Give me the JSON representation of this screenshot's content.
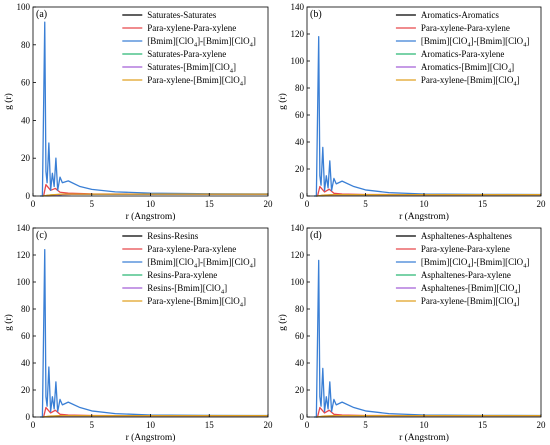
{
  "chart_data": [
    {
      "type": "line",
      "panel_label": "(a)",
      "xlabel": "r (Angstrom)",
      "ylabel": "g (r)",
      "xlim": [
        0,
        20
      ],
      "ylim": [
        0,
        100
      ],
      "xticks": [
        0,
        5,
        10,
        15,
        20
      ],
      "yticks": [
        0,
        20,
        40,
        60,
        80,
        100
      ],
      "legend_position": "top-right",
      "series": [
        {
          "name": "Saturates-Saturates",
          "color": "#000000",
          "x": [
            0.8,
            1.5,
            2.5,
            5,
            10,
            20
          ],
          "y": [
            0,
            0.3,
            0.8,
            1.0,
            1.0,
            1.0
          ]
        },
        {
          "name": "Para-xylene-Para-xylene",
          "color": "#e8474b",
          "x": [
            0.9,
            1.1,
            1.5,
            1.9,
            2.3,
            3,
            5,
            10,
            20
          ],
          "y": [
            0,
            6,
            3,
            4,
            2,
            1.5,
            1.1,
            1.0,
            1.0
          ]
        },
        {
          "name": "[Bmim][ClO4]-[Bmim][ClO4]",
          "color": "#3a7fd5",
          "x": [
            0.6,
            0.8,
            1.0,
            1.1,
            1.2,
            1.35,
            1.5,
            1.65,
            1.8,
            1.95,
            2.1,
            2.3,
            2.5,
            3,
            4,
            5,
            7,
            10,
            15,
            20
          ],
          "y": [
            0,
            0,
            92,
            13,
            7,
            28,
            3,
            12,
            5,
            20,
            3,
            10,
            7,
            8,
            5,
            3.5,
            2.2,
            1.5,
            1.2,
            1.1
          ]
        },
        {
          "name": "Saturates-Para-xylene",
          "color": "#2bb673",
          "x": [
            0.8,
            1.5,
            2.5,
            5,
            10,
            20
          ],
          "y": [
            0,
            0.5,
            0.9,
            1.0,
            1.0,
            1.0
          ]
        },
        {
          "name": "Saturates-[Bmim][ClO4]",
          "color": "#a35fd6",
          "x": [
            0.8,
            1.5,
            2.5,
            5,
            10,
            20
          ],
          "y": [
            0,
            0.4,
            0.8,
            1.0,
            1.0,
            1.0
          ]
        },
        {
          "name": "Para-xylene-[Bmim][ClO4]",
          "color": "#e0a020",
          "x": [
            0.8,
            1.5,
            2.5,
            5,
            10,
            20
          ],
          "y": [
            0,
            0.6,
            1.0,
            1.0,
            1.0,
            1.0
          ]
        }
      ]
    },
    {
      "type": "line",
      "panel_label": "(b)",
      "xlabel": "r (Angstrom)",
      "ylabel": "g (r)",
      "xlim": [
        0,
        20
      ],
      "ylim": [
        0,
        140
      ],
      "xticks": [
        0,
        5,
        10,
        15,
        20
      ],
      "yticks": [
        0,
        20,
        40,
        60,
        80,
        100,
        120,
        140
      ],
      "legend_position": "top-right",
      "series": [
        {
          "name": "Aromatics-Aromatics",
          "color": "#000000",
          "x": [
            0.8,
            1.5,
            2.5,
            5,
            10,
            20
          ],
          "y": [
            0,
            0.4,
            0.9,
            1.0,
            1.0,
            1.0
          ]
        },
        {
          "name": "Para-xylene-Para-xylene",
          "color": "#e8474b",
          "x": [
            0.9,
            1.1,
            1.5,
            1.9,
            2.3,
            3,
            5,
            10,
            20
          ],
          "y": [
            0,
            7,
            3,
            5,
            2,
            1.5,
            1.1,
            1.0,
            1.0
          ]
        },
        {
          "name": "[Bmim][ClO4]-[Bmim][ClO4]",
          "color": "#3a7fd5",
          "x": [
            0.6,
            0.8,
            1.0,
            1.1,
            1.2,
            1.35,
            1.5,
            1.65,
            1.8,
            1.95,
            2.1,
            2.3,
            2.5,
            3,
            4,
            5,
            7,
            10,
            15,
            20
          ],
          "y": [
            0,
            0,
            118,
            15,
            8,
            36,
            4,
            15,
            6,
            26,
            4,
            13,
            9,
            11,
            7,
            4.5,
            2.5,
            1.5,
            1.2,
            1.1
          ]
        },
        {
          "name": "Aromatics-Para-xylene",
          "color": "#2bb673",
          "x": [
            0.8,
            1.5,
            2.5,
            5,
            10,
            20
          ],
          "y": [
            0,
            0.5,
            1.0,
            1.0,
            1.0,
            1.0
          ]
        },
        {
          "name": "Aromatics-[Bmim][ClO4]",
          "color": "#a35fd6",
          "x": [
            0.8,
            1.5,
            2.5,
            5,
            10,
            20
          ],
          "y": [
            0,
            0.5,
            0.9,
            1.0,
            1.0,
            1.0
          ]
        },
        {
          "name": "Para-xylene-[Bmim][ClO4]",
          "color": "#e0a020",
          "x": [
            0.8,
            1.5,
            2.5,
            5,
            10,
            20
          ],
          "y": [
            0,
            0.7,
            1.0,
            1.0,
            1.0,
            1.0
          ]
        }
      ]
    },
    {
      "type": "line",
      "panel_label": "(c)",
      "xlabel": "r (Angstrom)",
      "ylabel": "g (r)",
      "xlim": [
        0,
        20
      ],
      "ylim": [
        0,
        140
      ],
      "xticks": [
        0,
        5,
        10,
        15,
        20
      ],
      "yticks": [
        0,
        20,
        40,
        60,
        80,
        100,
        120,
        140
      ],
      "legend_position": "top-right",
      "series": [
        {
          "name": "Resins-Resins",
          "color": "#000000",
          "x": [
            0.8,
            1.5,
            2.5,
            5,
            10,
            20
          ],
          "y": [
            0,
            0.3,
            0.8,
            1.0,
            1.0,
            1.0
          ]
        },
        {
          "name": "Para-xylene-Para-xylene",
          "color": "#e8474b",
          "x": [
            0.9,
            1.1,
            1.5,
            1.9,
            2.3,
            3,
            5,
            10,
            20
          ],
          "y": [
            0,
            7,
            3,
            5,
            2,
            1.5,
            1.1,
            1.0,
            1.0
          ]
        },
        {
          "name": "[Bmim][ClO4]-[Bmim][ClO4]",
          "color": "#3a7fd5",
          "x": [
            0.6,
            0.8,
            1.0,
            1.1,
            1.2,
            1.35,
            1.5,
            1.65,
            1.8,
            1.95,
            2.1,
            2.3,
            2.5,
            3,
            4,
            5,
            7,
            10,
            15,
            20
          ],
          "y": [
            0,
            0,
            124,
            15,
            8,
            37,
            4,
            15,
            6,
            26,
            4,
            13,
            9,
            11,
            7,
            4.5,
            2.5,
            1.5,
            1.2,
            1.1
          ]
        },
        {
          "name": "Resins-Para-xylene",
          "color": "#2bb673",
          "x": [
            0.8,
            1.5,
            2.5,
            5,
            10,
            20
          ],
          "y": [
            0,
            0.5,
            1.0,
            1.0,
            1.0,
            1.0
          ]
        },
        {
          "name": "Resins-[Bmim][ClO4]",
          "color": "#a35fd6",
          "x": [
            0.8,
            1.5,
            2.5,
            5,
            10,
            20
          ],
          "y": [
            0,
            0.4,
            0.9,
            1.0,
            1.0,
            1.0
          ]
        },
        {
          "name": "Para-xylene-[Bmim][ClO4]",
          "color": "#e0a020",
          "x": [
            0.8,
            1.5,
            2.5,
            5,
            10,
            20
          ],
          "y": [
            0,
            0.7,
            1.0,
            1.0,
            1.0,
            1.0
          ]
        }
      ]
    },
    {
      "type": "line",
      "panel_label": "(d)",
      "xlabel": "r (Angstrom)",
      "ylabel": "g (r)",
      "xlim": [
        0,
        20
      ],
      "ylim": [
        0,
        140
      ],
      "xticks": [
        0,
        5,
        10,
        15,
        20
      ],
      "yticks": [
        0,
        20,
        40,
        60,
        80,
        100,
        120,
        140
      ],
      "legend_position": "top-right",
      "series": [
        {
          "name": "Asphaltenes-Asphaltenes",
          "color": "#000000",
          "x": [
            0.8,
            1.5,
            2.5,
            5,
            10,
            20
          ],
          "y": [
            0,
            0.3,
            0.8,
            1.0,
            1.0,
            1.0
          ]
        },
        {
          "name": "Para-xylene-Para-xylene",
          "color": "#e8474b",
          "x": [
            0.9,
            1.1,
            1.5,
            1.9,
            2.3,
            3,
            5,
            10,
            20
          ],
          "y": [
            0,
            7,
            3,
            5,
            2,
            1.5,
            1.1,
            1.0,
            1.0
          ]
        },
        {
          "name": "[Bmim][ClO4]-[Bmim][ClO4]",
          "color": "#3a7fd5",
          "x": [
            0.6,
            0.8,
            1.0,
            1.1,
            1.2,
            1.35,
            1.5,
            1.65,
            1.8,
            1.95,
            2.1,
            2.3,
            2.5,
            3,
            4,
            5,
            7,
            10,
            15,
            20
          ],
          "y": [
            0,
            0,
            116,
            15,
            8,
            36,
            4,
            15,
            6,
            26,
            4,
            13,
            9,
            11,
            7,
            4.5,
            2.5,
            1.5,
            1.2,
            1.1
          ]
        },
        {
          "name": "Asphaltenes-Para-xylene",
          "color": "#2bb673",
          "x": [
            0.8,
            1.5,
            2.5,
            5,
            10,
            20
          ],
          "y": [
            0,
            0.5,
            1.0,
            1.0,
            1.0,
            1.0
          ]
        },
        {
          "name": "Asphaltenes-[Bmim][ClO4]",
          "color": "#a35fd6",
          "x": [
            0.8,
            1.5,
            2.5,
            5,
            10,
            20
          ],
          "y": [
            0,
            0.4,
            0.9,
            1.0,
            1.0,
            1.0
          ]
        },
        {
          "name": "Para-xylene-[Bmim][ClO4]",
          "color": "#e0a020",
          "x": [
            0.8,
            1.5,
            2.5,
            5,
            10,
            20
          ],
          "y": [
            0,
            0.7,
            1.0,
            1.0,
            1.0,
            1.0
          ]
        }
      ]
    }
  ]
}
